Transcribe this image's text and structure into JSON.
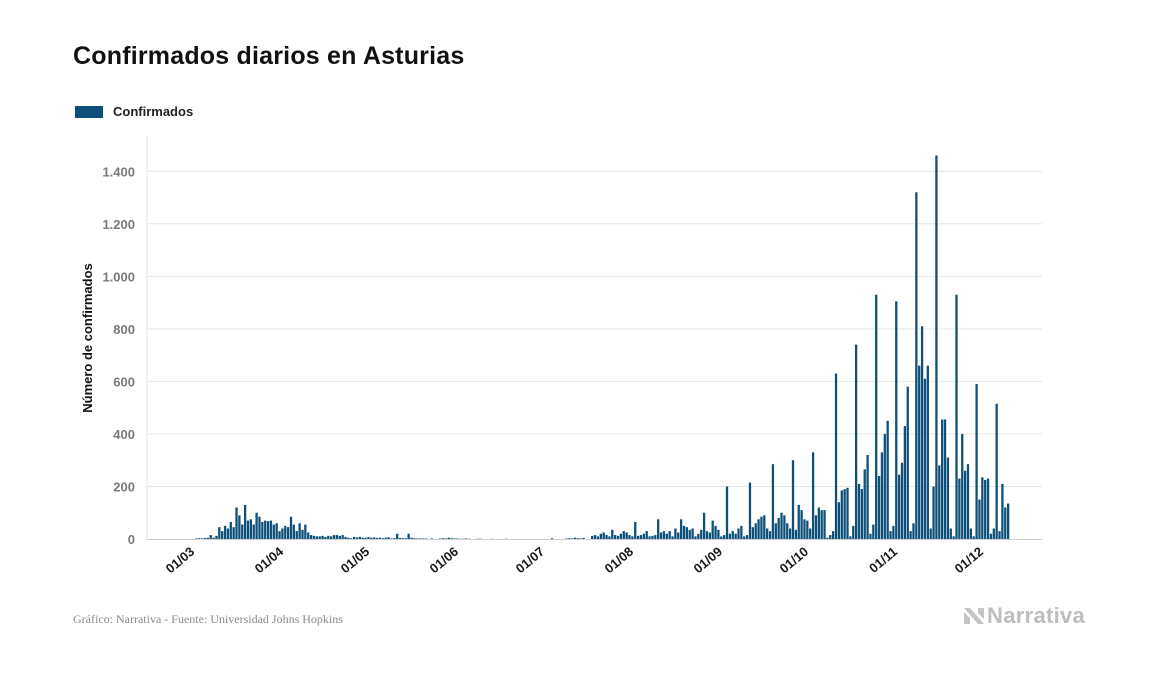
{
  "title": "Confirmados diarios en Asturias",
  "source": "Gráfico: Narrativa - Fuente: Universidad Johns Hopkins",
  "brand": {
    "name": "Narrativa",
    "icon": "narrativa-logo-icon",
    "color": "#bdbdbd"
  },
  "colors": {
    "bar": "#0e5079",
    "grid": "#e6e6e6"
  },
  "chart_data": {
    "type": "bar",
    "title": "Confirmados diarios en Asturias",
    "legend": {
      "entries": [
        "Confirmados"
      ],
      "placement": "top-left"
    },
    "ylabel": "Número de confirmados",
    "xlabel": "",
    "ylim": [
      0,
      1500
    ],
    "yticks": [
      0,
      200,
      400,
      600,
      800,
      1000,
      1200,
      1400
    ],
    "ytick_labels": [
      "0",
      "200",
      "400",
      "600",
      "800",
      "1.000",
      "1.200",
      "1.400"
    ],
    "xtick_labels": [
      "01/03",
      "01/04",
      "01/05",
      "01/06",
      "01/07",
      "01/08",
      "01/09",
      "01/10",
      "01/11",
      "01/12"
    ],
    "grid": true,
    "x_start": "2020-02-25",
    "series": [
      {
        "name": "Confirmados",
        "values": [
          0,
          0,
          0,
          0,
          0,
          0,
          2,
          3,
          2,
          4,
          5,
          15,
          5,
          12,
          45,
          30,
          50,
          40,
          65,
          45,
          120,
          90,
          55,
          130,
          70,
          75,
          55,
          100,
          85,
          65,
          70,
          68,
          70,
          55,
          60,
          30,
          40,
          50,
          45,
          85,
          55,
          30,
          60,
          35,
          55,
          25,
          15,
          12,
          10,
          10,
          12,
          8,
          12,
          10,
          15,
          15,
          12,
          15,
          8,
          5,
          3,
          8,
          6,
          8,
          5,
          5,
          7,
          5,
          6,
          4,
          5,
          3,
          5,
          7,
          2,
          3,
          20,
          4,
          3,
          3,
          20,
          5,
          3,
          2,
          2,
          2,
          2,
          0,
          2,
          0,
          0,
          2,
          3,
          2,
          5,
          3,
          2,
          2,
          1,
          1,
          2,
          1,
          0,
          0,
          1,
          1,
          0,
          0,
          0,
          1,
          0,
          0,
          0,
          0,
          1,
          0,
          0,
          0,
          0,
          0,
          0,
          0,
          0,
          0,
          0,
          0,
          0,
          0,
          0,
          0,
          3,
          0,
          0,
          0,
          0,
          2,
          3,
          2,
          5,
          3,
          2,
          4,
          0,
          0,
          12,
          15,
          10,
          20,
          25,
          15,
          10,
          35,
          15,
          12,
          20,
          30,
          25,
          15,
          10,
          65,
          12,
          15,
          20,
          30,
          10,
          12,
          15,
          75,
          25,
          30,
          20,
          30,
          10,
          40,
          25,
          75,
          50,
          45,
          35,
          40,
          10,
          20,
          35,
          100,
          30,
          25,
          70,
          50,
          35,
          10,
          15,
          200,
          20,
          30,
          20,
          40,
          50,
          10,
          15,
          215,
          45,
          60,
          75,
          85,
          90,
          40,
          30,
          285,
          60,
          80,
          100,
          90,
          60,
          40,
          300,
          35,
          130,
          110,
          75,
          70,
          40,
          330,
          90,
          120,
          110,
          110,
          5,
          15,
          30,
          630,
          140,
          185,
          190,
          195,
          10,
          50,
          740,
          210,
          190,
          265,
          320,
          20,
          55,
          930,
          240,
          330,
          400,
          450,
          30,
          50,
          905,
          245,
          290,
          430,
          580,
          30,
          60,
          1320,
          660,
          810,
          610,
          660,
          40,
          200,
          1460,
          280,
          455,
          455,
          310,
          40,
          10,
          930,
          230,
          400,
          260,
          285,
          40,
          10,
          590,
          150,
          235,
          225,
          230,
          20,
          40,
          515,
          30,
          210,
          120,
          135
        ]
      }
    ]
  }
}
